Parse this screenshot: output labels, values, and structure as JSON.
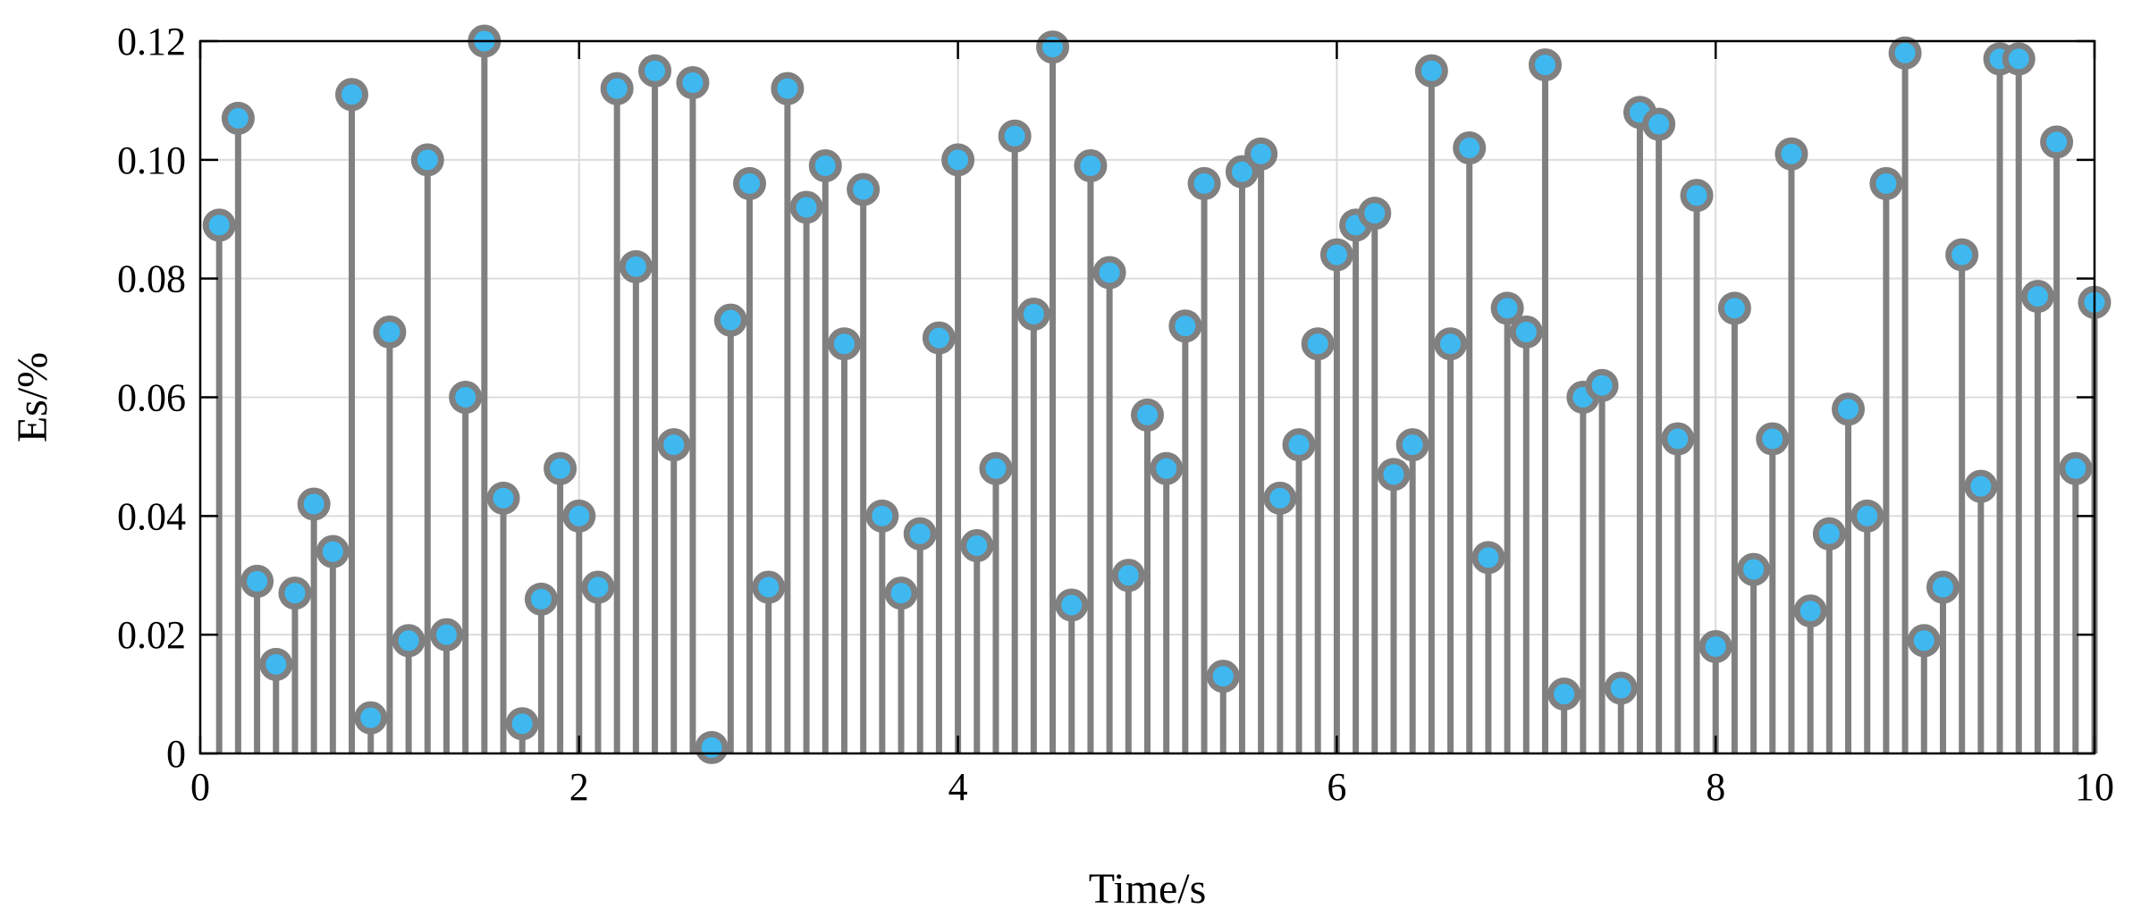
{
  "chart_data": {
    "type": "stem",
    "title": "",
    "xlabel": "Time/s",
    "ylabel": "Es/%",
    "xlim": [
      0,
      10
    ],
    "ylim": [
      0,
      0.12
    ],
    "xticks": [
      0,
      2,
      4,
      6,
      8,
      10
    ],
    "yticks": [
      0,
      0.02,
      0.04,
      0.06,
      0.08,
      0.1,
      0.12
    ],
    "xtick_labels": [
      "0",
      "2",
      "4",
      "6",
      "8",
      "10"
    ],
    "ytick_labels": [
      "0",
      "0.02",
      "0.04",
      "0.06",
      "0.08",
      "0.10",
      "0.12"
    ],
    "grid": true,
    "stem_color": "#808080",
    "marker_fill": "#3fb8f0",
    "marker_edge": "#808080",
    "x": [
      0.1,
      0.2,
      0.3,
      0.4,
      0.5,
      0.6,
      0.7,
      0.8,
      0.9,
      1.0,
      1.1,
      1.2,
      1.3,
      1.4,
      1.5,
      1.6,
      1.7,
      1.8,
      1.9,
      2.0,
      2.1,
      2.2,
      2.3,
      2.4,
      2.5,
      2.6,
      2.7,
      2.8,
      2.9,
      3.0,
      3.1,
      3.2,
      3.3,
      3.4,
      3.5,
      3.6,
      3.7,
      3.8,
      3.9,
      4.0,
      4.1,
      4.2,
      4.3,
      4.4,
      4.5,
      4.6,
      4.7,
      4.8,
      4.9,
      5.0,
      5.1,
      5.2,
      5.3,
      5.4,
      5.5,
      5.6,
      5.7,
      5.8,
      5.9,
      6.0,
      6.1,
      6.2,
      6.3,
      6.4,
      6.5,
      6.6,
      6.7,
      6.8,
      6.9,
      7.0,
      7.1,
      7.2,
      7.3,
      7.4,
      7.5,
      7.6,
      7.7,
      7.8,
      7.9,
      8.0,
      8.1,
      8.2,
      8.3,
      8.4,
      8.5,
      8.6,
      8.7,
      8.8,
      8.9,
      9.0,
      9.1,
      9.2,
      9.3,
      9.4,
      9.5,
      9.6,
      9.7,
      9.8,
      9.9,
      10.0
    ],
    "y": [
      0.089,
      0.107,
      0.029,
      0.015,
      0.027,
      0.042,
      0.034,
      0.111,
      0.006,
      0.071,
      0.019,
      0.1,
      0.02,
      0.06,
      0.12,
      0.043,
      0.005,
      0.026,
      0.048,
      0.04,
      0.028,
      0.112,
      0.082,
      0.115,
      0.052,
      0.113,
      0.001,
      0.073,
      0.096,
      0.028,
      0.112,
      0.092,
      0.099,
      0.069,
      0.095,
      0.04,
      0.027,
      0.037,
      0.07,
      0.1,
      0.035,
      0.048,
      0.104,
      0.074,
      0.119,
      0.025,
      0.099,
      0.081,
      0.03,
      0.057,
      0.048,
      0.072,
      0.096,
      0.013,
      0.098,
      0.101,
      0.043,
      0.052,
      0.069,
      0.084,
      0.089,
      0.091,
      0.047,
      0.052,
      0.115,
      0.069,
      0.102,
      0.033,
      0.075,
      0.071,
      0.116,
      0.01,
      0.06,
      0.062,
      0.011,
      0.108,
      0.106,
      0.053,
      0.094,
      0.018,
      0.075,
      0.031,
      0.053,
      0.101,
      0.024,
      0.037,
      0.058,
      0.04,
      0.096,
      0.118,
      0.019,
      0.028,
      0.084,
      0.045,
      0.117,
      0.117,
      0.077,
      0.103,
      0.048,
      0.076
    ]
  }
}
